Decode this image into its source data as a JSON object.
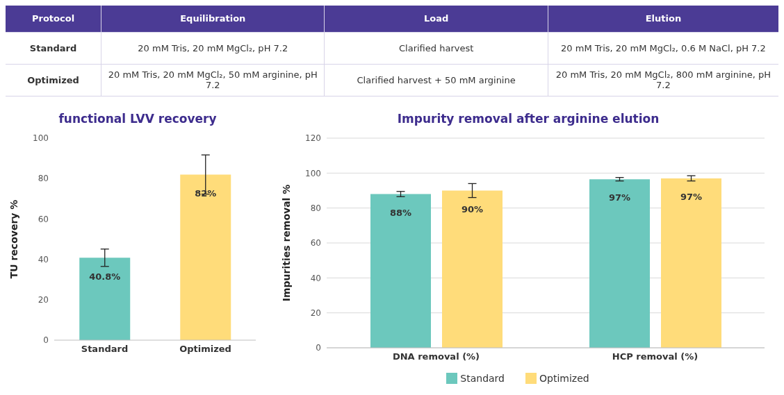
{
  "chart_data": [
    {
      "type": "other",
      "annotations": [
        "Protocol",
        "Equilibration",
        "Load",
        "Elution",
        "Standard",
        "20 mM Tris, 20 mM MgCl₂, pH 7.2",
        "Clarified harvest",
        "20 mM Tris, 20 mM MgCl₂, 0.6 M NaCl, pH 7.2",
        "Optimized",
        "20 mM Tris, 20 mM MgCl₂, 50 mM arginine, pH 7.2",
        "Clarified harvest + 50 mM arginine",
        "20 mM Tris, 20 mM MgCl₂, 800 mM arginine, pH 7.2"
      ]
    },
    {
      "type": "bar",
      "title": "functional LVV recovery",
      "ylabel": "TU recovery %",
      "categories": [
        "Standard",
        "Optimized"
      ],
      "values": [
        40.8,
        82
      ],
      "colors": [
        "#6cc8bd",
        "#ffdc7a"
      ],
      "errors": [
        4.3,
        9.7
      ],
      "value_labels": [
        "40.8%",
        "82%"
      ],
      "ylim": [
        0,
        100
      ],
      "yticks": [
        0,
        20,
        40,
        60,
        80,
        100
      ],
      "grid": false
    },
    {
      "type": "bar",
      "title": "Impurity removal after arginine elution",
      "ylabel": "Impurities removal %",
      "categories": [
        "DNA removal (%)",
        "HCP removal (%)"
      ],
      "series": [
        {
          "name": "Standard",
          "color": "#6cc8bd",
          "values": [
            88,
            96.5
          ],
          "errors": [
            1.5,
            1
          ],
          "value_labels": [
            "88%",
            "97%"
          ]
        },
        {
          "name": "Optimized",
          "color": "#ffdc7a",
          "values": [
            90,
            97
          ],
          "errors": [
            4,
            1.5
          ],
          "value_labels": [
            "90%",
            "97%"
          ]
        }
      ],
      "ylim": [
        0,
        120
      ],
      "yticks": [
        0,
        20,
        40,
        60,
        80,
        100,
        120
      ],
      "grid": "y",
      "legend": "bottom"
    }
  ]
}
